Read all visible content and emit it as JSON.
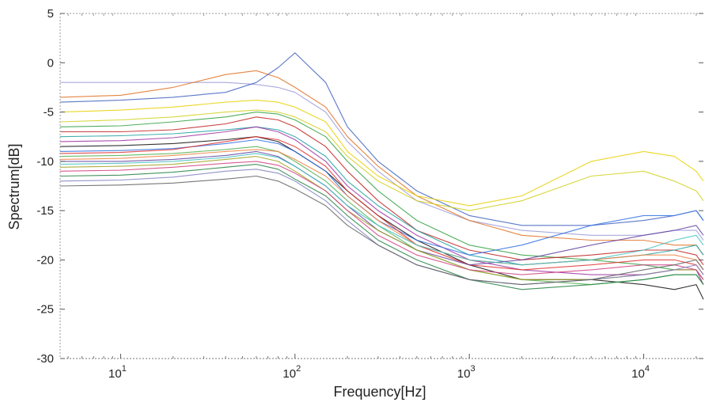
{
  "chart_data": {
    "type": "line",
    "title": "",
    "xlabel": "Frequency[Hz]",
    "ylabel": "Spectrum[dB]",
    "x_scale": "log",
    "xlim": [
      4.5,
      22000
    ],
    "ylim": [
      -30,
      5
    ],
    "y_ticks": [
      5,
      0,
      -5,
      -10,
      -15,
      -20,
      -25,
      -30
    ],
    "x_ticks": [
      {
        "value": 10,
        "base": "10",
        "exp": "1"
      },
      {
        "value": 100,
        "base": "10",
        "exp": "2"
      },
      {
        "value": 1000,
        "base": "10",
        "exp": "3"
      },
      {
        "value": 10000,
        "base": "10",
        "exp": "4"
      }
    ],
    "grid": false,
    "legend": "none",
    "x": [
      4.5,
      10,
      20,
      40,
      60,
      80,
      100,
      150,
      200,
      300,
      500,
      1000,
      2000,
      5000,
      10000,
      15000,
      20000,
      22000
    ],
    "series": [
      {
        "color": "#9a9ad8",
        "values": [
          -2.0,
          -2.0,
          -2.0,
          -2.0,
          -2.2,
          -2.5,
          -3.0,
          -5.0,
          -8.0,
          -11.0,
          -14.0,
          -16.0,
          -17.0,
          -17.5,
          -17.5,
          -17.0,
          -17.0,
          -18.0
        ]
      },
      {
        "color": "#e07020",
        "values": [
          -3.5,
          -3.3,
          -2.5,
          -1.2,
          -0.8,
          -1.5,
          -2.5,
          -4.5,
          -7.5,
          -10.5,
          -13.5,
          -16.0,
          -17.5,
          -18.0,
          -18.0,
          -18.5,
          -18.5,
          -19.5
        ]
      },
      {
        "color": "#4060c0",
        "values": [
          -4.0,
          -3.8,
          -3.5,
          -3.0,
          -2.0,
          -0.5,
          1.0,
          -2.0,
          -6.5,
          -10.0,
          -13.0,
          -15.5,
          -16.5,
          -16.5,
          -16.0,
          -15.5,
          -15.0,
          -16.0
        ]
      },
      {
        "color": "#e8d000",
        "values": [
          -5.0,
          -4.8,
          -4.5,
          -4.0,
          -3.8,
          -4.0,
          -4.5,
          -6.0,
          -9.0,
          -11.5,
          -13.5,
          -14.5,
          -13.5,
          -10.0,
          -9.0,
          -9.5,
          -11.0,
          -12.0
        ]
      },
      {
        "color": "#d0d020",
        "values": [
          -6.0,
          -5.8,
          -5.5,
          -5.0,
          -4.8,
          -5.0,
          -5.5,
          -7.0,
          -9.5,
          -12.0,
          -14.0,
          -15.0,
          -14.0,
          -11.5,
          -11.0,
          -12.0,
          -13.0,
          -14.0
        ]
      },
      {
        "color": "#30a040",
        "values": [
          -6.5,
          -6.4,
          -6.0,
          -5.5,
          -5.0,
          -5.2,
          -5.8,
          -7.5,
          -10.0,
          -13.0,
          -16.0,
          -18.5,
          -19.5,
          -20.0,
          -20.5,
          -21.0,
          -21.0,
          -22.0
        ]
      },
      {
        "color": "#c02020",
        "values": [
          -7.0,
          -7.0,
          -6.8,
          -6.2,
          -5.5,
          -5.8,
          -6.5,
          -8.5,
          -11.0,
          -14.0,
          -17.0,
          -19.0,
          -20.0,
          -19.5,
          -19.0,
          -19.0,
          -19.5,
          -20.5
        ]
      },
      {
        "color": "#20a0a0",
        "values": [
          -7.5,
          -7.4,
          -7.2,
          -6.8,
          -6.5,
          -6.8,
          -7.5,
          -9.5,
          -12.0,
          -14.5,
          -17.0,
          -19.5,
          -20.5,
          -20.0,
          -19.5,
          -19.0,
          -18.5,
          -19.5
        ]
      },
      {
        "color": "#a030a0",
        "values": [
          -8.0,
          -7.9,
          -7.6,
          -7.0,
          -6.5,
          -7.0,
          -7.8,
          -10.0,
          -12.5,
          -15.0,
          -17.5,
          -20.0,
          -21.0,
          -21.5,
          -21.5,
          -21.0,
          -21.0,
          -22.5
        ]
      },
      {
        "color": "#101010",
        "values": [
          -8.5,
          -8.4,
          -8.2,
          -7.8,
          -7.5,
          -8.0,
          -9.0,
          -11.0,
          -13.0,
          -15.5,
          -18.0,
          -20.5,
          -22.0,
          -22.0,
          -22.5,
          -23.0,
          -22.5,
          -24.0
        ]
      },
      {
        "color": "#3070e0",
        "values": [
          -9.0,
          -8.9,
          -8.7,
          -8.2,
          -7.8,
          -8.2,
          -9.0,
          -11.0,
          -13.5,
          -16.0,
          -18.0,
          -19.5,
          -18.5,
          -16.5,
          -15.5,
          -15.5,
          -15.0,
          -16.0
        ]
      },
      {
        "color": "#e03030",
        "values": [
          -9.2,
          -9.1,
          -8.8,
          -8.0,
          -7.5,
          -7.8,
          -8.5,
          -10.5,
          -13.0,
          -15.5,
          -18.5,
          -20.5,
          -21.0,
          -20.5,
          -20.0,
          -20.0,
          -20.5,
          -21.5
        ]
      },
      {
        "color": "#50b050",
        "values": [
          -9.5,
          -9.4,
          -9.2,
          -8.8,
          -8.5,
          -9.0,
          -10.0,
          -12.0,
          -14.0,
          -16.5,
          -19.0,
          -21.0,
          -22.0,
          -22.5,
          -22.0,
          -21.5,
          -21.5,
          -22.5
        ]
      },
      {
        "color": "#f08040",
        "values": [
          -9.8,
          -9.7,
          -9.4,
          -9.0,
          -8.8,
          -9.0,
          -9.8,
          -11.5,
          -13.5,
          -16.0,
          -18.5,
          -20.0,
          -20.5,
          -20.0,
          -19.5,
          -19.5,
          -20.0,
          -21.0
        ]
      },
      {
        "color": "#6040a0",
        "values": [
          -10.0,
          -10.0,
          -9.8,
          -9.4,
          -9.0,
          -9.5,
          -10.5,
          -12.5,
          -14.5,
          -17.0,
          -19.0,
          -20.5,
          -20.0,
          -18.5,
          -17.5,
          -17.0,
          -16.5,
          -17.5
        ]
      },
      {
        "color": "#40c0c0",
        "values": [
          -10.3,
          -10.2,
          -10.0,
          -9.6,
          -9.2,
          -9.6,
          -10.5,
          -12.5,
          -14.5,
          -16.5,
          -18.5,
          -20.0,
          -20.5,
          -20.0,
          -19.0,
          -18.0,
          -17.5,
          -18.5
        ]
      },
      {
        "color": "#a0a020",
        "values": [
          -10.6,
          -10.5,
          -10.3,
          -9.8,
          -9.5,
          -10.0,
          -11.0,
          -13.0,
          -15.0,
          -17.0,
          -19.0,
          -21.0,
          -22.0,
          -22.0,
          -21.5,
          -21.0,
          -21.0,
          -22.0
        ]
      },
      {
        "color": "#d04080",
        "values": [
          -11.0,
          -10.9,
          -10.6,
          -10.2,
          -10.0,
          -10.4,
          -11.2,
          -13.0,
          -15.0,
          -17.5,
          -19.5,
          -21.0,
          -21.5,
          -21.0,
          -20.5,
          -20.5,
          -21.0,
          -22.0
        ]
      },
      {
        "color": "#208040",
        "values": [
          -11.5,
          -11.4,
          -11.1,
          -10.6,
          -10.3,
          -10.8,
          -11.8,
          -13.5,
          -15.5,
          -18.0,
          -20.0,
          -22.0,
          -23.0,
          -22.5,
          -22.0,
          -21.5,
          -21.5,
          -22.5
        ]
      },
      {
        "color": "#8080c0",
        "values": [
          -12.0,
          -11.9,
          -11.6,
          -11.0,
          -10.8,
          -11.2,
          -12.0,
          -14.0,
          -16.0,
          -18.5,
          -20.5,
          -22.0,
          -22.5,
          -22.0,
          -21.5,
          -21.0,
          -20.5,
          -21.5
        ]
      },
      {
        "color": "#606060",
        "values": [
          -12.5,
          -12.4,
          -12.2,
          -11.8,
          -11.5,
          -12.0,
          -12.8,
          -14.5,
          -16.5,
          -18.5,
          -20.5,
          -22.0,
          -22.5,
          -22.0,
          -21.0,
          -20.5,
          -20.0,
          -21.0
        ]
      }
    ]
  }
}
